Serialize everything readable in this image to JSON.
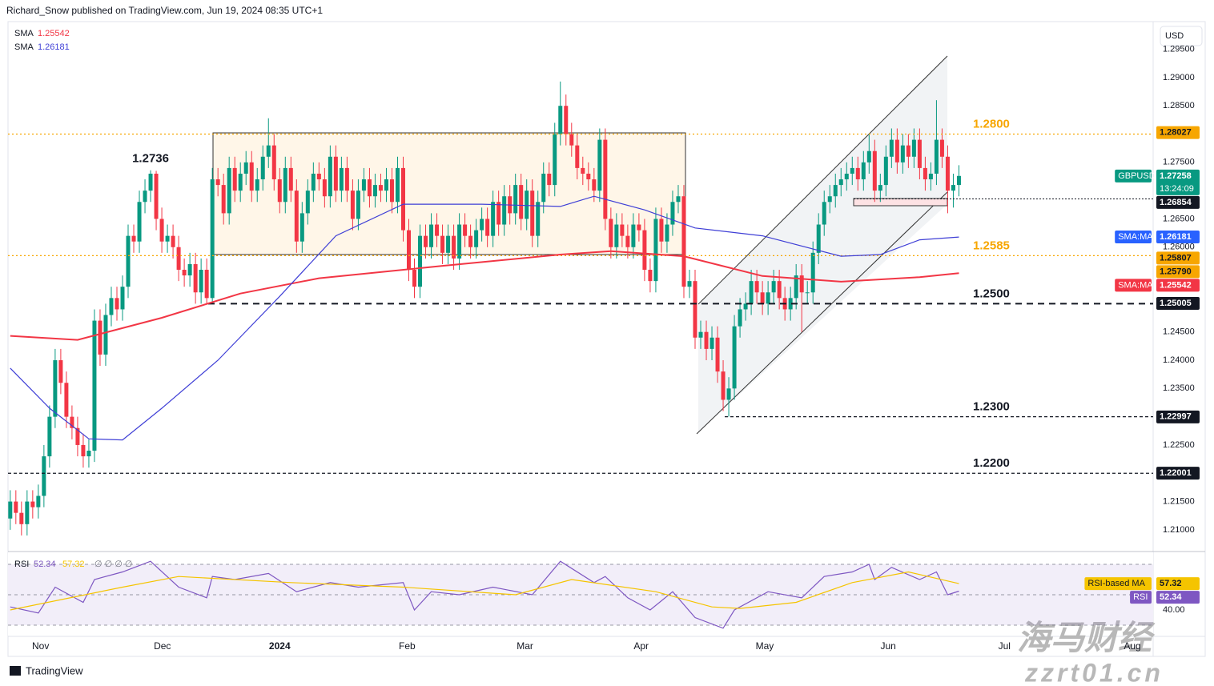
{
  "header": {
    "byline": "Richard_Snow published on TradingView.com, Jun 19, 2024 08:35 UTC+1",
    "currency": "USD",
    "footer": "TradingView",
    "watermark": [
      "海马财经",
      "zzrt01.cn"
    ]
  },
  "chart_data": [
    {
      "type": "candlestick",
      "symbol": "GBPUSD",
      "up_color": "#089981",
      "down_color": "#f23645",
      "open": [
        1.212,
        1.215,
        1.213,
        1.211,
        1.215,
        1.214,
        1.216,
        1.223,
        1.23,
        1.24,
        1.236,
        1.23,
        1.228,
        1.225,
        1.223,
        1.224,
        1.247,
        1.241,
        1.248,
        1.251,
        1.249,
        1.253,
        1.262,
        1.261,
        1.268,
        1.27,
        1.273,
        1.265,
        1.261,
        1.262,
        1.26,
        1.256,
        1.255,
        1.257,
        1.252,
        1.256,
        1.251,
        1.272,
        1.271,
        1.266,
        1.274,
        1.27,
        1.273,
        1.275,
        1.27,
        1.272,
        1.276,
        1.278,
        1.272,
        1.268,
        1.274,
        1.27,
        1.261,
        1.266,
        1.27,
        1.273,
        1.272,
        1.269,
        1.276,
        1.27,
        1.274,
        1.27,
        1.265,
        1.27,
        1.272,
        1.269,
        1.271,
        1.27,
        1.272,
        1.268,
        1.274,
        1.263,
        1.256,
        1.253,
        1.262,
        1.26,
        1.264,
        1.262,
        1.259,
        1.262,
        1.258,
        1.264,
        1.262,
        1.26,
        1.263,
        1.265,
        1.262,
        1.268,
        1.264,
        1.269,
        1.266,
        1.271,
        1.265,
        1.27,
        1.262,
        1.268,
        1.273,
        1.271,
        1.28,
        1.285,
        1.28,
        1.278,
        1.274,
        1.273,
        1.272,
        1.27,
        1.279,
        1.265,
        1.26,
        1.264,
        1.262,
        1.26,
        1.264,
        1.263,
        1.256,
        1.254,
        1.265,
        1.261,
        1.264,
        1.268,
        1.269,
        1.253,
        1.254,
        1.244,
        1.245,
        1.242,
        1.244,
        1.238,
        1.233,
        1.235,
        1.246,
        1.249,
        1.25,
        1.254,
        1.252,
        1.25,
        1.252,
        1.254,
        1.251,
        1.249,
        1.251,
        1.255,
        1.252,
        1.252,
        1.259,
        1.264,
        1.268,
        1.269,
        1.271,
        1.272,
        1.273,
        1.274,
        1.272,
        1.275,
        1.277,
        1.27,
        1.271,
        1.276,
        1.279,
        1.275,
        1.278,
        1.276,
        1.279,
        1.274,
        1.272,
        1.273,
        1.279,
        1.276,
        1.27,
        1.271
      ],
      "high": [
        1.217,
        1.217,
        1.215,
        1.217,
        1.217,
        1.218,
        1.225,
        1.232,
        1.242,
        1.242,
        1.238,
        1.232,
        1.23,
        1.227,
        1.226,
        1.249,
        1.249,
        1.25,
        1.253,
        1.253,
        1.255,
        1.264,
        1.264,
        1.27,
        1.272,
        1.2736,
        1.2735,
        1.267,
        1.264,
        1.264,
        1.262,
        1.258,
        1.259,
        1.259,
        1.258,
        1.258,
        1.274,
        1.274,
        1.273,
        1.276,
        1.276,
        1.275,
        1.277,
        1.277,
        1.274,
        1.278,
        1.2828,
        1.28,
        1.274,
        1.276,
        1.276,
        1.272,
        1.268,
        1.272,
        1.275,
        1.275,
        1.274,
        1.278,
        1.278,
        1.276,
        1.276,
        1.272,
        1.272,
        1.274,
        1.274,
        1.273,
        1.273,
        1.274,
        1.274,
        1.276,
        1.276,
        1.265,
        1.258,
        1.264,
        1.264,
        1.266,
        1.266,
        1.264,
        1.264,
        1.264,
        1.266,
        1.266,
        1.264,
        1.265,
        1.267,
        1.267,
        1.27,
        1.27,
        1.271,
        1.271,
        1.273,
        1.273,
        1.272,
        1.272,
        1.27,
        1.275,
        1.275,
        1.282,
        1.2893,
        1.287,
        1.282,
        1.28,
        1.276,
        1.275,
        1.274,
        1.281,
        1.281,
        1.267,
        1.266,
        1.266,
        1.264,
        1.266,
        1.266,
        1.265,
        1.258,
        1.267,
        1.267,
        1.266,
        1.27,
        1.271,
        1.271,
        1.256,
        1.256,
        1.247,
        1.247,
        1.246,
        1.246,
        1.24,
        1.237,
        1.248,
        1.251,
        1.252,
        1.256,
        1.256,
        1.254,
        1.254,
        1.256,
        1.256,
        1.253,
        1.253,
        1.257,
        1.257,
        1.254,
        1.261,
        1.266,
        1.27,
        1.271,
        1.273,
        1.274,
        1.275,
        1.276,
        1.276,
        1.277,
        1.28,
        1.279,
        1.273,
        1.278,
        1.281,
        1.281,
        1.28,
        1.28,
        1.281,
        1.281,
        1.276,
        1.275,
        1.286,
        1.281,
        1.278,
        1.273,
        1.2745
      ],
      "low": [
        1.21,
        1.211,
        1.209,
        1.209,
        1.212,
        1.212,
        1.214,
        1.221,
        1.228,
        1.234,
        1.228,
        1.226,
        1.223,
        1.221,
        1.221,
        1.222,
        1.239,
        1.239,
        1.246,
        1.247,
        1.247,
        1.251,
        1.259,
        1.259,
        1.266,
        1.268,
        1.263,
        1.259,
        1.259,
        1.258,
        1.254,
        1.253,
        1.253,
        1.25,
        1.25,
        1.25,
        1.25,
        1.269,
        1.264,
        1.264,
        1.268,
        1.268,
        1.271,
        1.268,
        1.268,
        1.27,
        1.274,
        1.27,
        1.266,
        1.266,
        1.268,
        1.259,
        1.259,
        1.264,
        1.268,
        1.27,
        1.267,
        1.267,
        1.268,
        1.268,
        1.268,
        1.263,
        1.263,
        1.268,
        1.267,
        1.267,
        1.268,
        1.268,
        1.266,
        1.266,
        1.261,
        1.254,
        1.251,
        1.251,
        1.258,
        1.258,
        1.26,
        1.257,
        1.257,
        1.256,
        1.256,
        1.26,
        1.258,
        1.258,
        1.261,
        1.26,
        1.26,
        1.262,
        1.262,
        1.264,
        1.264,
        1.263,
        1.263,
        1.26,
        1.26,
        1.266,
        1.269,
        1.269,
        1.278,
        1.278,
        1.276,
        1.272,
        1.271,
        1.27,
        1.268,
        1.268,
        1.263,
        1.258,
        1.258,
        1.26,
        1.258,
        1.258,
        1.261,
        1.254,
        1.252,
        1.252,
        1.259,
        1.259,
        1.262,
        1.266,
        1.251,
        1.251,
        1.242,
        1.242,
        1.24,
        1.24,
        1.236,
        1.231,
        1.23,
        1.233,
        1.244,
        1.247,
        1.248,
        1.25,
        1.248,
        1.248,
        1.25,
        1.249,
        1.247,
        1.247,
        1.249,
        1.245,
        1.25,
        1.25,
        1.257,
        1.262,
        1.266,
        1.267,
        1.269,
        1.27,
        1.271,
        1.27,
        1.27,
        1.273,
        1.268,
        1.268,
        1.269,
        1.274,
        1.273,
        1.273,
        1.274,
        1.274,
        1.272,
        1.27,
        1.27,
        1.271,
        1.274,
        1.266,
        1.267,
        1.269
      ],
      "close": [
        1.215,
        1.213,
        1.211,
        1.215,
        1.214,
        1.216,
        1.223,
        1.23,
        1.24,
        1.236,
        1.23,
        1.228,
        1.225,
        1.223,
        1.224,
        1.247,
        1.241,
        1.248,
        1.251,
        1.249,
        1.253,
        1.262,
        1.261,
        1.268,
        1.27,
        1.273,
        1.265,
        1.261,
        1.262,
        1.26,
        1.256,
        1.255,
        1.257,
        1.252,
        1.256,
        1.251,
        1.272,
        1.271,
        1.266,
        1.274,
        1.27,
        1.273,
        1.275,
        1.27,
        1.272,
        1.276,
        1.278,
        1.272,
        1.268,
        1.274,
        1.27,
        1.261,
        1.266,
        1.27,
        1.273,
        1.272,
        1.269,
        1.276,
        1.27,
        1.274,
        1.27,
        1.265,
        1.27,
        1.272,
        1.269,
        1.271,
        1.27,
        1.272,
        1.268,
        1.274,
        1.263,
        1.256,
        1.253,
        1.262,
        1.26,
        1.264,
        1.262,
        1.259,
        1.262,
        1.258,
        1.264,
        1.262,
        1.26,
        1.263,
        1.265,
        1.262,
        1.268,
        1.264,
        1.269,
        1.266,
        1.271,
        1.265,
        1.27,
        1.262,
        1.268,
        1.273,
        1.271,
        1.28,
        1.285,
        1.28,
        1.278,
        1.274,
        1.273,
        1.272,
        1.27,
        1.279,
        1.265,
        1.26,
        1.264,
        1.262,
        1.26,
        1.264,
        1.263,
        1.256,
        1.254,
        1.265,
        1.261,
        1.264,
        1.268,
        1.269,
        1.253,
        1.254,
        1.244,
        1.245,
        1.242,
        1.244,
        1.238,
        1.233,
        1.235,
        1.246,
        1.249,
        1.25,
        1.254,
        1.252,
        1.25,
        1.252,
        1.254,
        1.251,
        1.249,
        1.251,
        1.255,
        1.252,
        1.252,
        1.259,
        1.264,
        1.268,
        1.269,
        1.271,
        1.272,
        1.273,
        1.274,
        1.272,
        1.275,
        1.277,
        1.27,
        1.271,
        1.276,
        1.279,
        1.275,
        1.278,
        1.276,
        1.279,
        1.274,
        1.272,
        1.273,
        1.279,
        1.276,
        1.27,
        1.271,
        1.2726
      ],
      "xlim": [
        -0.4,
        203.6
      ],
      "xticks": [
        {
          "value": 5.4,
          "label": "Nov"
        },
        {
          "value": 27.1,
          "label": "Dec"
        },
        {
          "value": 48,
          "label": "2024"
        },
        {
          "value": 70.7,
          "label": "Feb"
        },
        {
          "value": 91.7,
          "label": "Mar"
        },
        {
          "value": 112.4,
          "label": "Apr"
        },
        {
          "value": 134.4,
          "label": "May"
        },
        {
          "value": 156.4,
          "label": "Jun"
        },
        {
          "value": 177.1,
          "label": "Jul"
        },
        {
          "value": 199.9,
          "label": "Aug"
        }
      ],
      "ylim": [
        1.2063,
        1.2999
      ],
      "yticks": [
        {
          "value": 1.295,
          "label": "1.29500"
        },
        {
          "value": 1.29,
          "label": "1.29000"
        },
        {
          "value": 1.285,
          "label": "1.28500"
        },
        {
          "value": 1.275,
          "label": "1.27500"
        },
        {
          "value": 1.265,
          "label": "1.26500"
        },
        {
          "value": 1.26,
          "label": "1.26000"
        },
        {
          "value": 1.245,
          "label": "1.24500"
        },
        {
          "value": 1.24,
          "label": "1.24000"
        },
        {
          "value": 1.235,
          "label": "1.23500"
        },
        {
          "value": 1.225,
          "label": "1.22500"
        },
        {
          "value": 1.215,
          "label": "1.21500"
        },
        {
          "value": 1.21,
          "label": "1.21000"
        }
      ],
      "series": [
        {
          "name": "SMA",
          "color": "#f23645",
          "legend_value": 1.25542,
          "x": [
            0,
            12,
            27,
            41,
            55,
            77,
            98,
            107,
            120,
            134,
            148,
            162,
            169
          ],
          "values": [
            1.2443,
            1.2436,
            1.2475,
            1.2518,
            1.2545,
            1.2567,
            1.2587,
            1.2593,
            1.2584,
            1.2549,
            1.2539,
            1.2547,
            1.2554
          ]
        },
        {
          "name": "SMA",
          "color": "#3f3fd6",
          "legend_value": 1.26181,
          "x": [
            0,
            7,
            14,
            20,
            27,
            37,
            48,
            58,
            70,
            84,
            98,
            104,
            113,
            122,
            134,
            148,
            155,
            162,
            169
          ],
          "values": [
            1.2386,
            1.2315,
            1.2261,
            1.2259,
            1.2315,
            1.24,
            1.2513,
            1.262,
            1.2676,
            1.2676,
            1.2672,
            1.269,
            1.2666,
            1.2634,
            1.262,
            1.2584,
            1.2587,
            1.2613,
            1.2618
          ]
        }
      ],
      "levels": [
        {
          "label": "1.2800",
          "value": 1.28,
          "color": "#f7a600"
        },
        {
          "label": "1.2585",
          "value": 1.2585,
          "color": "#f7a600"
        },
        {
          "label": "1.2500",
          "value": 1.25,
          "color": "#131722"
        },
        {
          "label": "1.2300",
          "value": 1.23,
          "color": "#131722"
        },
        {
          "label": "1.2200",
          "value": 1.22,
          "color": "#131722"
        }
      ],
      "annotations": [
        {
          "label": "1.2736",
          "value": 1.2736,
          "x": 25
        }
      ],
      "price_tags": [
        {
          "value": 1.28027,
          "color": "#f7a600",
          "text_color": "#131722"
        },
        {
          "name": "GBPUSD",
          "value": 1.27258,
          "countdown": "13:24:09",
          "color": "#089981",
          "text_color": "#ffffff"
        },
        {
          "value": 1.26854,
          "color": "#131722",
          "text_color": "#ffffff"
        },
        {
          "name": "SMA:MA",
          "value": 1.26181,
          "color": "#2962ff",
          "text_color": "#ffffff"
        },
        {
          "value": 1.25807,
          "color": "#f7a600",
          "text_color": "#131722"
        },
        {
          "value": 1.2579,
          "label": "1.25790",
          "color": "#f7a600",
          "text_color": "#131722"
        },
        {
          "name": "SMA:MA",
          "value": 1.25542,
          "color": "#f23645",
          "text_color": "#ffffff"
        },
        {
          "value": 1.25005,
          "color": "#131722",
          "text_color": "#ffffff"
        },
        {
          "value": 1.22997,
          "color": "#131722",
          "text_color": "#ffffff"
        },
        {
          "value": 1.22001,
          "color": "#131722",
          "text_color": "#ffffff"
        }
      ]
    },
    {
      "type": "line",
      "title": "RSI",
      "legend_extra": "∅ ∅ ∅ ∅",
      "xlim": [
        -0.4,
        203.6
      ],
      "ylim": [
        24.2,
        77.9
      ],
      "levels": [
        70,
        50,
        30
      ],
      "yticks": [
        {
          "value": 40,
          "label": "40.00"
        }
      ],
      "series": [
        {
          "name": "RSI",
          "color": "#7e57c2",
          "legend_value": 52.34,
          "x": [
            0,
            5,
            8,
            13,
            15,
            20,
            25,
            30,
            35,
            36,
            40,
            46,
            51,
            57,
            62,
            70,
            72,
            75,
            80,
            86,
            93,
            98,
            104,
            106,
            110,
            114,
            118,
            122,
            127,
            129,
            135,
            141,
            145,
            150,
            153,
            154,
            157,
            162,
            165,
            167,
            169
          ],
          "values": [
            42,
            38,
            55,
            45,
            60,
            65,
            72,
            55,
            48,
            62,
            60,
            64,
            52,
            58,
            55,
            58,
            40,
            52,
            50,
            55,
            50,
            72,
            58,
            62,
            48,
            40,
            52,
            35,
            28,
            40,
            52,
            48,
            62,
            65,
            70,
            60,
            68,
            60,
            65,
            50,
            52.34
          ]
        },
        {
          "name": "RSI-based MA",
          "color": "#f5c400",
          "legend_value": 57.32,
          "x": [
            0,
            20,
            30,
            50,
            70,
            90,
            100,
            115,
            125,
            130,
            140,
            150,
            160,
            169
          ],
          "values": [
            40,
            55,
            62,
            58,
            55,
            50,
            60,
            52,
            42,
            41,
            45,
            58,
            65,
            57.32
          ]
        }
      ],
      "price_tags": [
        {
          "name": "RSI-based MA",
          "value": 57.32,
          "color": "#f5c400",
          "text_color": "#131722"
        },
        {
          "name": "RSI",
          "value": 52.34,
          "color": "#7e57c2",
          "text_color": "#ffffff"
        }
      ]
    }
  ]
}
